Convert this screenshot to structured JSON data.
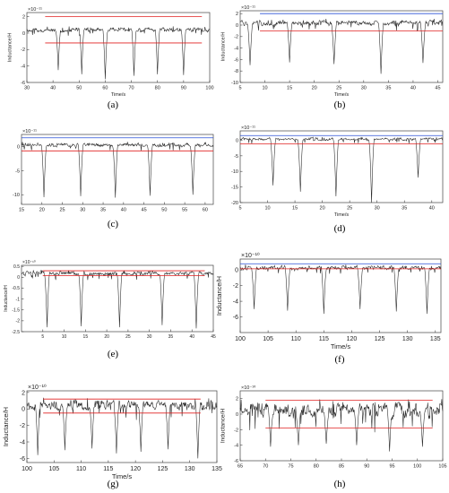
{
  "figure": {
    "panels": [
      {
        "label": "(a)"
      },
      {
        "label": "(b)"
      },
      {
        "label": "(c)"
      },
      {
        "label": "(d)"
      },
      {
        "label": "(e)"
      },
      {
        "label": "(f)"
      },
      {
        "label": "(g)"
      },
      {
        "label": "(h)"
      }
    ]
  },
  "chart_data": [
    {
      "type": "line",
      "caption": "(a)",
      "xlabel": "Time/s",
      "ylabel": "Inductance/H",
      "exponent": "×10⁻¹¹",
      "xlim": [
        30,
        100
      ],
      "ylim": [
        -6,
        2.5
      ],
      "xticks": [
        30,
        40,
        50,
        60,
        70,
        80,
        90,
        100
      ],
      "yticks": [
        -6,
        -4,
        -2,
        0,
        2
      ],
      "baseline": [
        0.2,
        0.6
      ],
      "dips": [
        42,
        51,
        60,
        71,
        80,
        90
      ],
      "dip_depth": [
        -4.5,
        -5.0,
        -5.6,
        -5.2,
        -5.0,
        -5.1
      ],
      "thresholds": [
        {
          "value": 2.0,
          "color": "#e02020"
        },
        {
          "value": -1.2,
          "color": "#e02020"
        }
      ],
      "threshold_x": [
        37,
        97
      ],
      "line_color": "#222222"
    },
    {
      "type": "line",
      "caption": "(b)",
      "xlabel": "Time/s",
      "ylabel": "Inductance/H",
      "exponent": "×10⁻¹¹",
      "xlim": [
        5,
        46
      ],
      "ylim": [
        -10,
        2.5
      ],
      "xticks": [
        5,
        10,
        15,
        20,
        25,
        30,
        35,
        40,
        45
      ],
      "yticks": [
        -10,
        -8,
        -6,
        -4,
        -2,
        0,
        2
      ],
      "baseline": [
        0.0,
        0.7
      ],
      "dips": [
        7,
        15,
        24,
        33.5,
        42
      ],
      "dip_depth": [
        -7.0,
        -6.5,
        -6.8,
        -8.5,
        -6.6
      ],
      "thresholds": [
        {
          "value": 2.0,
          "color": "#2a52d8"
        },
        {
          "value": -1.0,
          "color": "#e02020"
        }
      ],
      "threshold_x": [
        9,
        46
      ],
      "line_color": "#222222"
    },
    {
      "type": "line",
      "caption": "(c)",
      "xlabel": "",
      "ylabel": "",
      "exponent": "×10⁻¹¹",
      "xlim": [
        15,
        62
      ],
      "ylim": [
        -12,
        2.5
      ],
      "xticks": [
        15,
        20,
        25,
        30,
        35,
        40,
        45,
        50,
        55,
        60
      ],
      "yticks": [
        -10,
        -5,
        0
      ],
      "baseline": [
        0.0,
        0.6
      ],
      "dips": [
        20.5,
        29.5,
        38,
        46.5,
        57
      ],
      "dip_depth": [
        -10.5,
        -10.3,
        -10.6,
        -10.2,
        -10.0
      ],
      "thresholds": [
        {
          "value": 1.8,
          "color": "#2a52d8"
        },
        {
          "value": -0.9,
          "color": "#e02020"
        }
      ],
      "threshold_x": [
        15,
        62
      ],
      "line_color": "#222222"
    },
    {
      "type": "line",
      "caption": "(d)",
      "xlabel": "Time/s",
      "ylabel": "",
      "exponent": "×10⁻¹¹",
      "xlim": [
        5,
        42
      ],
      "ylim": [
        -20,
        3
      ],
      "xticks": [
        5,
        10,
        15,
        20,
        25,
        30,
        35,
        40
      ],
      "yticks": [
        -20,
        -15,
        -10,
        -5,
        0
      ],
      "baseline": [
        0.0,
        0.7
      ],
      "dips": [
        11,
        16,
        22.5,
        29,
        37.5
      ],
      "dip_depth": [
        -14.5,
        -16.5,
        -18.0,
        -20.0,
        -12.0
      ],
      "thresholds": [
        {
          "value": 1.5,
          "color": "#2a52d8"
        },
        {
          "value": -1.2,
          "color": "#e02020"
        }
      ],
      "threshold_x": [
        5,
        42
      ],
      "line_color": "#222222"
    },
    {
      "type": "line",
      "caption": "(e)",
      "xlabel": "",
      "ylabel": "Inductance/H",
      "exponent": "×10⁻¹⁰",
      "xlim": [
        0,
        45
      ],
      "ylim": [
        -2.5,
        0.55
      ],
      "xticks": [
        5,
        10,
        15,
        20,
        25,
        30,
        35,
        40,
        45
      ],
      "yticks": [
        -2.5,
        -2,
        -1.5,
        -1,
        -0.5,
        0,
        0.5
      ],
      "baseline": [
        0.1,
        0.25
      ],
      "dips": [
        6,
        14,
        23,
        33,
        41
      ],
      "dip_depth": [
        -2.3,
        -2.25,
        -2.3,
        -2.2,
        -2.35
      ],
      "thresholds": [
        {
          "value": 0.3,
          "color": "#e02020"
        },
        {
          "value": 0.08,
          "color": "#e02020"
        }
      ],
      "threshold_x": [
        5,
        43
      ],
      "line_color": "#222222"
    },
    {
      "type": "line",
      "caption": "(f)",
      "xlabel": "Time/s",
      "ylabel": "Inductance/H",
      "exponent": "×10⁻¹⁰",
      "xlim": [
        100,
        136
      ],
      "ylim": [
        -8,
        1.4
      ],
      "xticks": [
        100,
        105,
        110,
        115,
        120,
        125,
        130,
        135
      ],
      "yticks": [
        -6,
        -4,
        -2,
        0
      ],
      "baseline": [
        0.1,
        0.5
      ],
      "dips": [
        102.5,
        108.5,
        115,
        121.5,
        128,
        133.5
      ],
      "dip_depth": [
        -5.0,
        -5.2,
        -5.6,
        -5.0,
        -5.3,
        -5.6
      ],
      "thresholds": [
        {
          "value": 0.8,
          "color": "#2a52d8"
        },
        {
          "value": 0.15,
          "color": "#e02020"
        }
      ],
      "threshold_x": [
        100,
        136
      ],
      "line_color": "#222222"
    },
    {
      "type": "line",
      "caption": "(g)",
      "xlabel": "Time/s",
      "ylabel": "Inductance/H",
      "exponent": "×10⁻¹⁰",
      "xlim": [
        100,
        135
      ],
      "ylim": [
        -6.5,
        2.2
      ],
      "xticks": [
        100,
        105,
        110,
        115,
        120,
        125,
        130,
        135
      ],
      "yticks": [
        -6,
        -4,
        -2,
        0,
        2
      ],
      "baseline": [
        0.0,
        0.9
      ],
      "dips": [
        102,
        107,
        112,
        116.5,
        121,
        126,
        131.5
      ],
      "dip_depth": [
        -5.6,
        -5.0,
        -4.8,
        -5.4,
        -5.2,
        -4.9,
        -6.0
      ],
      "thresholds": [
        {
          "value": 1.2,
          "color": "#e02020"
        },
        {
          "value": -0.5,
          "color": "#e02020"
        }
      ],
      "threshold_x": [
        103,
        132
      ],
      "line_color": "#222222"
    },
    {
      "type": "line",
      "caption": "(h)",
      "xlabel": "",
      "ylabel": "Inductance/H",
      "exponent": "×10⁻¹⁰",
      "xlim": [
        65,
        105
      ],
      "ylim": [
        -6,
        3
      ],
      "xticks": [
        65,
        70,
        75,
        80,
        85,
        90,
        95,
        100,
        105
      ],
      "yticks": [
        -6,
        -4,
        -2,
        0,
        2
      ],
      "baseline": [
        -0.3,
        1.2
      ],
      "dips": [
        71,
        76.5,
        82,
        88,
        94.5,
        101
      ],
      "dip_depth": [
        -4.2,
        -4.0,
        -3.8,
        -4.0,
        -4.8,
        -4.2
      ],
      "thresholds": [
        {
          "value": 1.8,
          "color": "#e02020"
        },
        {
          "value": -1.8,
          "color": "#e02020"
        }
      ],
      "threshold_x": [
        70,
        103
      ],
      "line_color": "#222222"
    }
  ]
}
